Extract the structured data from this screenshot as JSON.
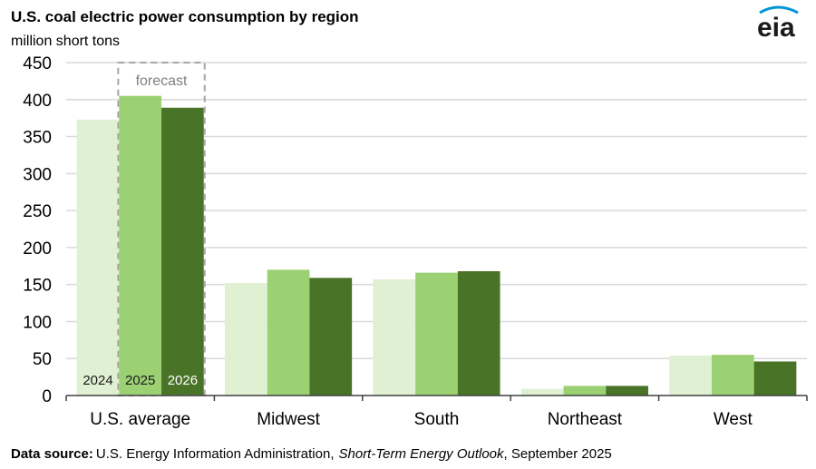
{
  "header": {
    "title": "U.S. coal electric power consumption by region",
    "unit": "million short tons",
    "logo": "eia"
  },
  "footer": {
    "label": "Data source:",
    "source": "U.S. Energy Information Administration,",
    "publication": "Short-Term Energy Outlook",
    "date": ", September 2025"
  },
  "chart_data": {
    "type": "bar",
    "title": "U.S. coal electric power consumption by region",
    "ylabel": "million short tons",
    "ylim": [
      0,
      450
    ],
    "yticks": [
      0,
      50,
      100,
      150,
      200,
      250,
      300,
      350,
      400,
      450
    ],
    "grid": true,
    "categories": [
      "U.S. average",
      "Midwest",
      "South",
      "Northeast",
      "West"
    ],
    "series": [
      {
        "name": "2024",
        "color": "#dff0d3",
        "label_color": "#1a1a1a",
        "values": [
          373,
          152,
          157,
          9,
          54
        ]
      },
      {
        "name": "2025",
        "color": "#9bd073",
        "label_color": "#1a1a1a",
        "values": [
          405,
          170,
          166,
          13,
          55
        ]
      },
      {
        "name": "2026",
        "color": "#497327",
        "label_color": "#ffffff",
        "values": [
          389,
          159,
          168,
          13,
          46
        ]
      }
    ],
    "annotation": "forecast"
  }
}
